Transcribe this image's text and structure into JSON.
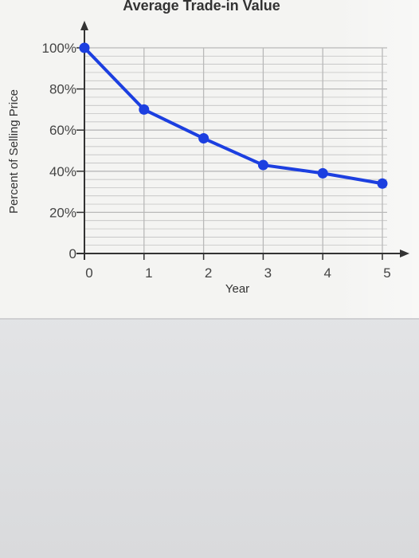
{
  "chart_data": {
    "type": "line",
    "title": "Average Trade-in Value",
    "xlabel": "Year",
    "ylabel": "Percent of Selling Price",
    "x": [
      0,
      1,
      2,
      3,
      4,
      5
    ],
    "x_tick_labels": [
      "0",
      "1",
      "2",
      "3",
      "4",
      "5"
    ],
    "y_ticks": [
      0,
      20,
      40,
      60,
      80,
      100
    ],
    "y_tick_labels": [
      "0",
      "20%",
      "40%",
      "60%",
      "80%",
      "100%"
    ],
    "series": [
      {
        "values": [
          100,
          70,
          56,
          43,
          39,
          34
        ]
      }
    ],
    "xlim": [
      0,
      5
    ],
    "ylim": [
      0,
      100
    ],
    "grid": true,
    "minor_grid_per_major": 5,
    "line_color": "#1c3fe0",
    "grid_color": "#b9b9b9"
  }
}
